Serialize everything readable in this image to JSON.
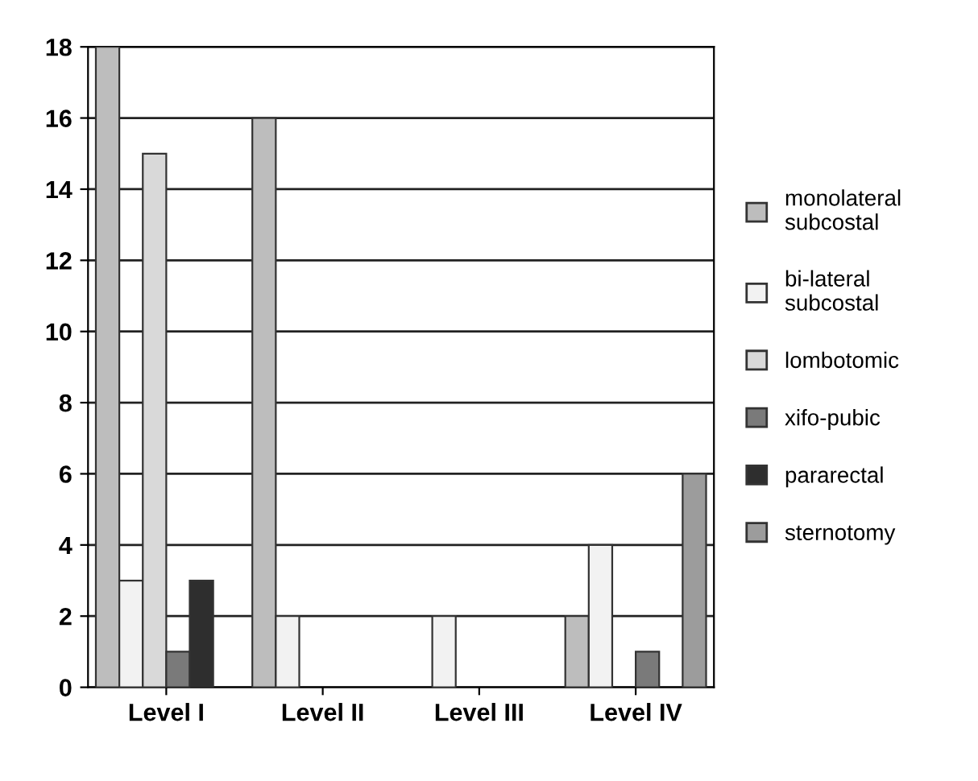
{
  "chart_data": {
    "type": "bar",
    "categories": [
      "Level I",
      "Level II",
      "Level III",
      "Level IV"
    ],
    "series": [
      {
        "name": "monolateral\nsubcostal",
        "color": "#bdbdbd",
        "values": [
          18,
          16,
          0,
          2
        ]
      },
      {
        "name": "bi-lateral\nsubcostal",
        "color": "#f2f2f2",
        "values": [
          3,
          2,
          2,
          4
        ]
      },
      {
        "name": "lombotomic",
        "color": "#d9d9d9",
        "values": [
          15,
          0,
          0,
          0
        ]
      },
      {
        "name": "xifo-pubic",
        "color": "#7a7a7a",
        "values": [
          1,
          0,
          0,
          1
        ]
      },
      {
        "name": "pararectal",
        "color": "#2e2e2e",
        "values": [
          3,
          0,
          0,
          0
        ]
      },
      {
        "name": "sternotomy",
        "color": "#9c9c9c",
        "values": [
          0,
          0,
          0,
          6
        ]
      }
    ],
    "ylim": [
      0,
      18
    ],
    "yticks": [
      0,
      2,
      4,
      6,
      8,
      10,
      12,
      14,
      16,
      18
    ],
    "grid": "y",
    "legend": "right"
  }
}
